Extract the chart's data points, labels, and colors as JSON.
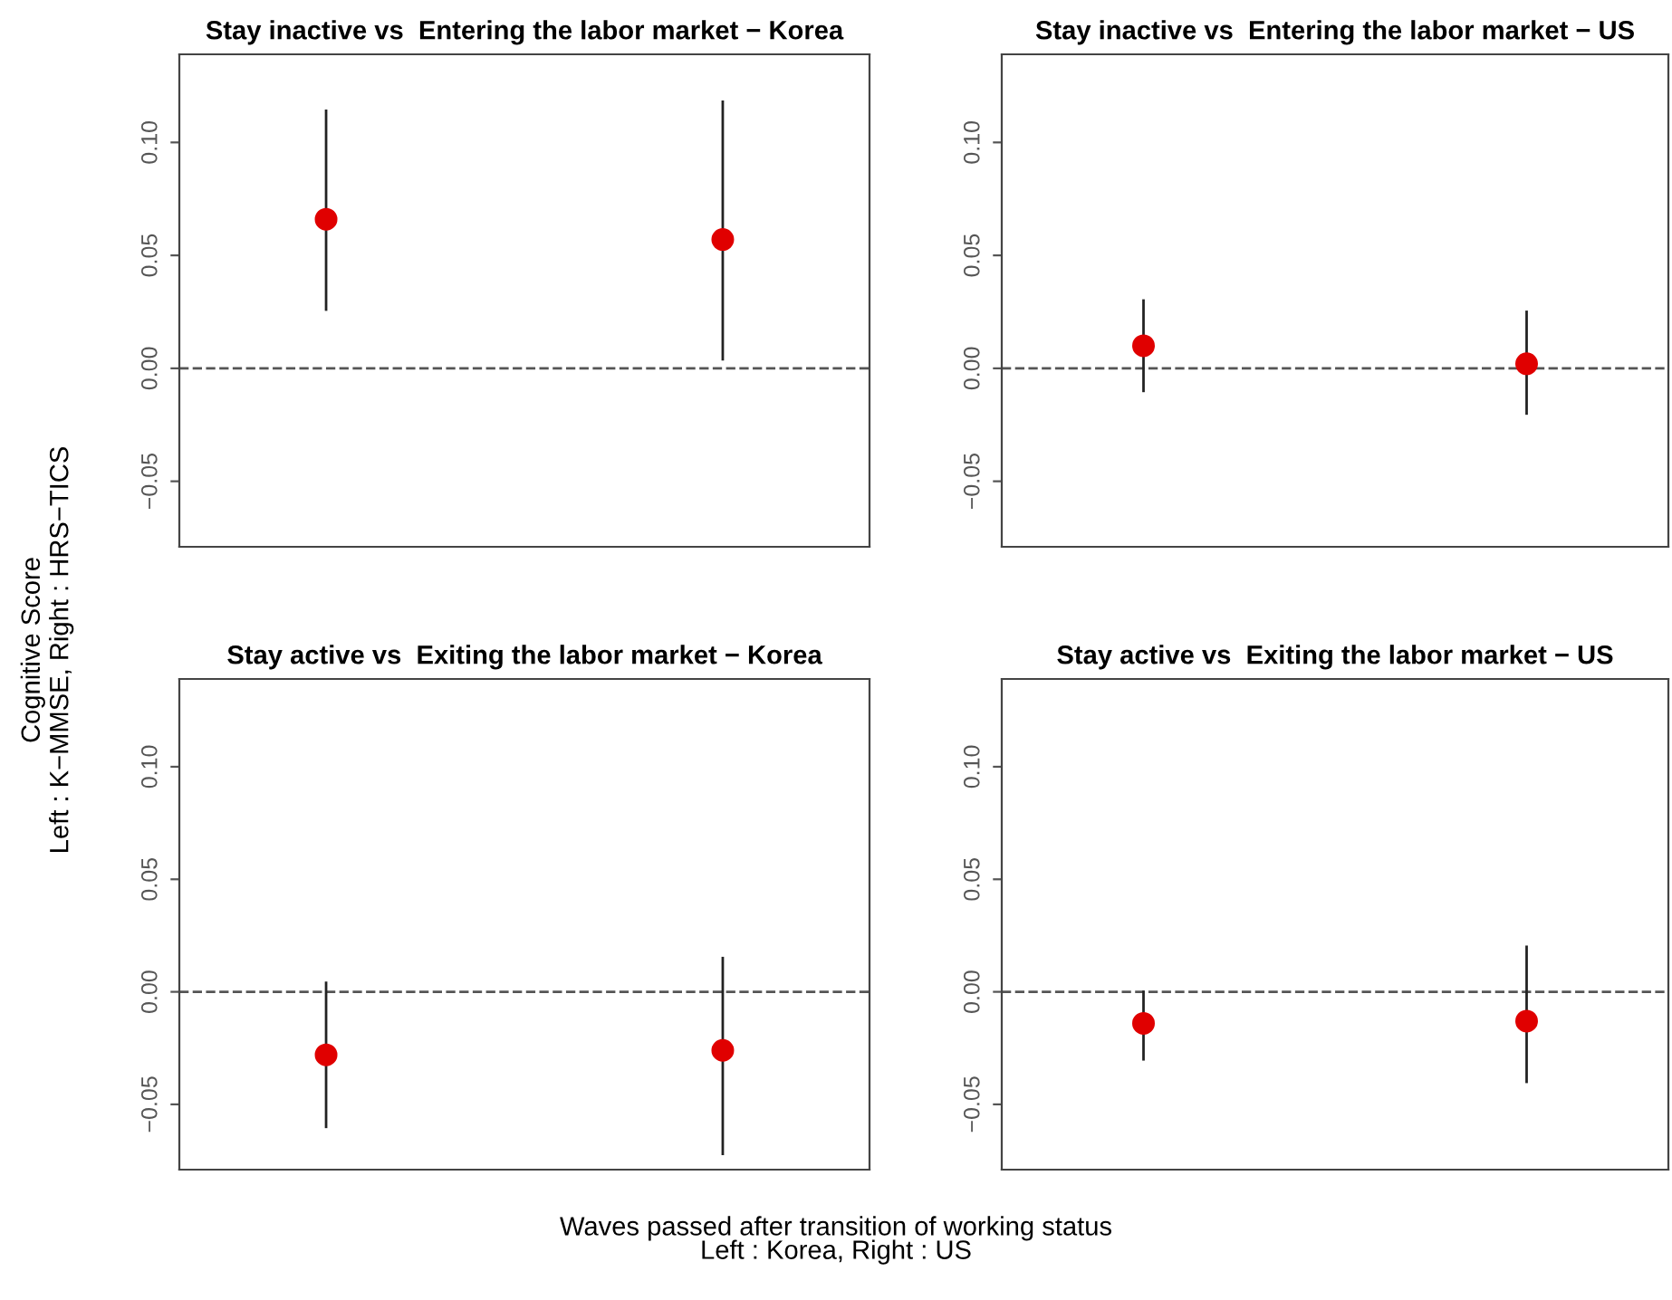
{
  "chart_data": [
    {
      "type": "scatter",
      "title": "Stay inactive vs  Entering the labor market − Korea",
      "ylabel": "Cognitive Score\nLeft : K−MMSE, Right : HRS−TICS",
      "categories": [
        null,
        null
      ],
      "values": [
        0.066,
        0.057
      ],
      "errors": [
        [
          0.026,
          0.114
        ],
        [
          0.004,
          0.118
        ]
      ],
      "color": "#e00000",
      "marker": "circle",
      "ylim": [
        -0.079,
        0.139
      ],
      "yticks": [
        {
          "value": -0.05,
          "label": "−0.05"
        },
        {
          "value": 0,
          "label": "0.00"
        },
        {
          "value": 0.05,
          "label": "0.05"
        },
        {
          "value": 0.1,
          "label": "0.10"
        }
      ],
      "ref_lines": [
        {
          "axis": "y",
          "value": 0,
          "line_style": "dashed",
          "color": "#555555"
        }
      ],
      "grid": false,
      "legend": false
    },
    {
      "type": "scatter",
      "title": "Stay inactive vs  Entering the labor market − US",
      "categories": [
        null,
        null
      ],
      "values": [
        0.01,
        0.002
      ],
      "errors": [
        [
          -0.01,
          0.03
        ],
        [
          -0.02,
          0.025
        ]
      ],
      "color": "#e00000",
      "marker": "circle",
      "ylim": [
        -0.079,
        0.139
      ],
      "yticks": [
        {
          "value": -0.05,
          "label": "−0.05"
        },
        {
          "value": 0,
          "label": "0.00"
        },
        {
          "value": 0.05,
          "label": "0.05"
        },
        {
          "value": 0.1,
          "label": "0.10"
        }
      ],
      "ref_lines": [
        {
          "axis": "y",
          "value": 0,
          "line_style": "dashed",
          "color": "#555555"
        }
      ],
      "grid": false,
      "legend": false
    },
    {
      "type": "scatter",
      "title": "Stay active vs  Exiting the labor market − Korea",
      "xlabel": "Waves passed after transition of working status\nLeft : Korea, Right : US",
      "categories": [
        null,
        null
      ],
      "values": [
        -0.028,
        -0.026
      ],
      "errors": [
        [
          -0.06,
          0.004
        ],
        [
          -0.072,
          0.015
        ]
      ],
      "color": "#e00000",
      "marker": "circle",
      "ylim": [
        -0.079,
        0.139
      ],
      "yticks": [
        {
          "value": -0.05,
          "label": "−0.05"
        },
        {
          "value": 0,
          "label": "0.00"
        },
        {
          "value": 0.05,
          "label": "0.05"
        },
        {
          "value": 0.1,
          "label": "0.10"
        }
      ],
      "ref_lines": [
        {
          "axis": "y",
          "value": 0,
          "line_style": "dashed",
          "color": "#555555"
        }
      ],
      "grid": false,
      "legend": false
    },
    {
      "type": "scatter",
      "title": "Stay active vs  Exiting the labor market − US",
      "categories": [
        null,
        null
      ],
      "values": [
        -0.014,
        -0.013
      ],
      "errors": [
        [
          -0.03,
          0.0
        ],
        [
          -0.04,
          0.02
        ]
      ],
      "color": "#e00000",
      "marker": "circle",
      "ylim": [
        -0.079,
        0.139
      ],
      "yticks": [
        {
          "value": -0.05,
          "label": "−0.05"
        },
        {
          "value": 0,
          "label": "0.00"
        },
        {
          "value": 0.05,
          "label": "0.05"
        },
        {
          "value": 0.1,
          "label": "0.10"
        }
      ],
      "ref_lines": [
        {
          "axis": "y",
          "value": 0,
          "line_style": "dashed",
          "color": "#555555"
        }
      ],
      "grid": false,
      "legend": false
    }
  ]
}
